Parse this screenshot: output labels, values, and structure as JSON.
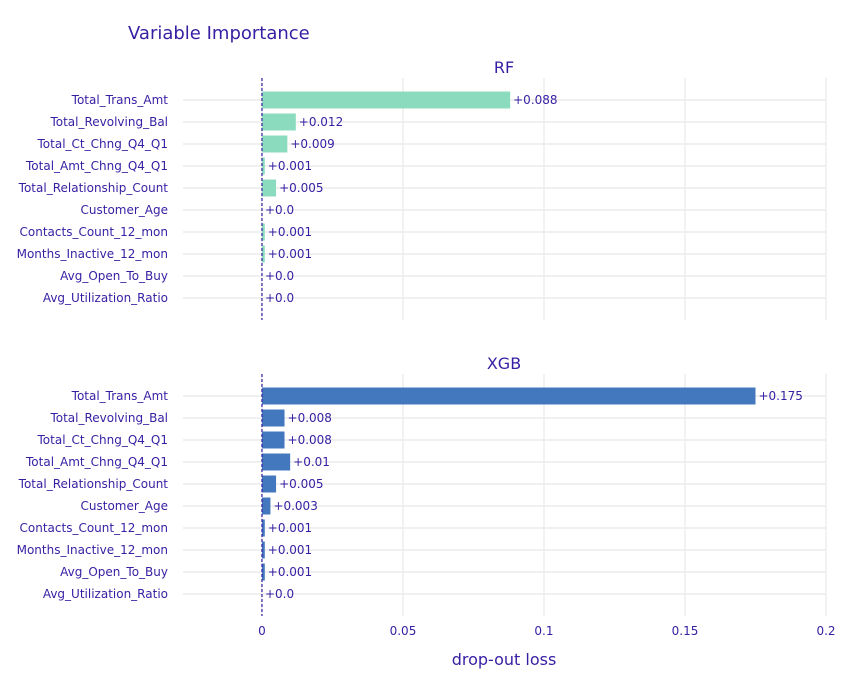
{
  "title": "Variable Importance",
  "xlabel": "drop-out loss",
  "colors": {
    "text": "#371ea3",
    "grid": "#ececec",
    "rf": "#8bdcbe",
    "xgb": "#4378bf"
  },
  "chart_data": {
    "type": "bar",
    "orientation": "horizontal",
    "title": "Variable Importance",
    "xlabel": "drop-out loss",
    "xlim": [
      -0.028,
      0.2
    ],
    "xticks": [
      0,
      0.05,
      0.1,
      0.15,
      0.2
    ],
    "xtick_labels": [
      "0",
      "0.05",
      "0.1",
      "0.15",
      "0.2"
    ],
    "baseline": 0,
    "categories": [
      "Total_Trans_Amt",
      "Total_Revolving_Bal",
      "Total_Ct_Chng_Q4_Q1",
      "Total_Amt_Chng_Q4_Q1",
      "Total_Relationship_Count",
      "Customer_Age",
      "Contacts_Count_12_mon",
      "Months_Inactive_12_mon",
      "Avg_Open_To_Buy",
      "Avg_Utilization_Ratio"
    ],
    "series": [
      {
        "name": "RF",
        "color": "#8bdcbe",
        "values": [
          0.088,
          0.012,
          0.009,
          0.001,
          0.005,
          0.0,
          0.001,
          0.001,
          0.0,
          0.0
        ],
        "labels": [
          "+0.088",
          "+0.012",
          "+0.009",
          "+0.001",
          "+0.005",
          "+0.0",
          "+0.001",
          "+0.001",
          "+0.0",
          "+0.0"
        ]
      },
      {
        "name": "XGB",
        "color": "#4378bf",
        "values": [
          0.175,
          0.008,
          0.008,
          0.01,
          0.005,
          0.003,
          0.001,
          0.001,
          0.001,
          0.0
        ],
        "labels": [
          "+0.175",
          "+0.008",
          "+0.008",
          "+0.01",
          "+0.005",
          "+0.003",
          "+0.001",
          "+0.001",
          "+0.001",
          "+0.0"
        ]
      }
    ],
    "legend": "none",
    "grid": true
  }
}
